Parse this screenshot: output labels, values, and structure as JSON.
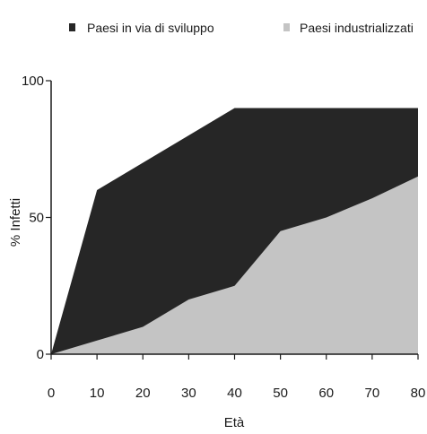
{
  "chart_data": {
    "type": "area",
    "title": "",
    "xlabel": "Età",
    "ylabel": "% Infetti",
    "xlim": [
      0,
      80
    ],
    "ylim": [
      0,
      100
    ],
    "x_ticks": [
      0,
      10,
      20,
      30,
      40,
      50,
      60,
      70,
      80
    ],
    "y_ticks": [
      0,
      50,
      100
    ],
    "grid": false,
    "legend_position": "top",
    "series": [
      {
        "name": "Paesi in via di sviluppo",
        "color": "#262626",
        "x": [
          0,
          10,
          20,
          30,
          40,
          50,
          60,
          70,
          80
        ],
        "values": [
          0,
          60,
          70,
          80,
          90,
          90,
          90,
          90,
          90
        ]
      },
      {
        "name": "Paesi industrializzati",
        "color": "#c4c4c4",
        "x": [
          0,
          10,
          20,
          30,
          40,
          50,
          60,
          70,
          80
        ],
        "values": [
          0,
          5,
          10,
          20,
          25,
          45,
          50,
          57,
          65
        ]
      }
    ]
  }
}
